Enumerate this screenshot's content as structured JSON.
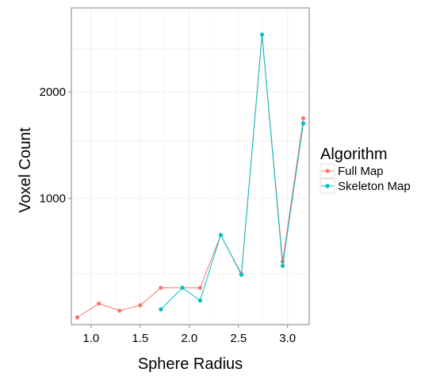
{
  "chart_data": {
    "type": "line",
    "title": "",
    "xlabel": "Sphere Radius",
    "ylabel": "Voxel Count",
    "xlim": [
      0.8,
      3.22
    ],
    "ylim": [
      260,
      3030
    ],
    "y_scale": "sqrt",
    "x_ticks": [
      1.0,
      1.5,
      2.0,
      2.5,
      3.0
    ],
    "x_tick_labels": [
      "1.0",
      "1.5",
      "2.0",
      "2.5",
      "3.0"
    ],
    "y_ticks": [
      1000,
      2000
    ],
    "y_tick_labels": [
      "1000",
      "2000"
    ],
    "grid": true,
    "legend": {
      "title": "Algorithm",
      "position": "right"
    },
    "series": [
      {
        "name": "Full Map",
        "color": "#F8766D",
        "x": [
          0.86,
          1.08,
          1.29,
          1.5,
          1.71,
          1.93,
          2.11,
          2.32,
          2.53,
          2.74,
          2.95,
          3.16
        ],
        "y": [
          289,
          350,
          318,
          342,
          426,
          426,
          426,
          736,
          500,
          2680,
          570,
          1720
        ]
      },
      {
        "name": "Skeleton Map",
        "color": "#00BFC4",
        "x": [
          1.71,
          1.93,
          2.11,
          2.32,
          2.53,
          2.74,
          2.95,
          3.16
        ],
        "y": [
          324,
          426,
          364,
          736,
          495,
          2680,
          545,
          1670
        ]
      }
    ]
  }
}
